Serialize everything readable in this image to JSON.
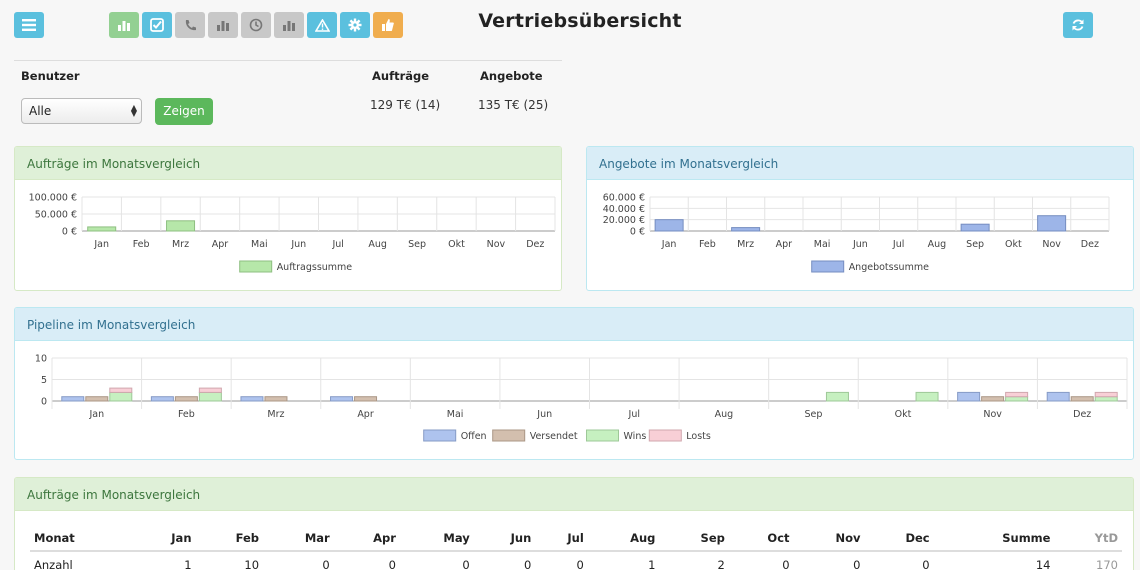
{
  "page_title": "Vertriebsübersicht",
  "toolbar": {
    "buttons": [
      {
        "name": "menu-button",
        "icon": "menu-list-icon",
        "color": "#5bc0de"
      },
      {
        "name": "bar-chart-button",
        "icon": "bar-chart-icon",
        "color": "#93d092"
      },
      {
        "name": "check-button",
        "icon": "checkbox-icon",
        "color": "#5bc0de"
      },
      {
        "name": "phone-button",
        "icon": "phone-icon",
        "color": "#c8c8c8"
      },
      {
        "name": "stats-button",
        "icon": "bar-chart-icon",
        "color": "#c8c8c8"
      },
      {
        "name": "clock-button",
        "icon": "clock-icon",
        "color": "#c8c8c8"
      },
      {
        "name": "stats2-button",
        "icon": "bar-chart-icon",
        "color": "#c8c8c8"
      },
      {
        "name": "warning-button",
        "icon": "warning-icon",
        "color": "#5bc0de"
      },
      {
        "name": "settings-button",
        "icon": "gear-icon",
        "color": "#5bc0de"
      },
      {
        "name": "thumbs-up-button",
        "icon": "thumbs-up-icon",
        "color": "#f0ad4e"
      },
      {
        "name": "refresh-button",
        "icon": "refresh-icon",
        "color": "#5bc0de"
      }
    ]
  },
  "filter": {
    "user_label": "Benutzer",
    "orders_label": "Aufträge",
    "offers_label": "Angebote",
    "user_select_value": "Alle",
    "show_button": "Zeigen",
    "orders_value": "129 T€ (14)",
    "offers_value": "135 T€ (25)"
  },
  "panels": {
    "orders_title": "Aufträge im Monatsvergleich",
    "offers_title": "Angebote im Monatsvergleich",
    "pipeline_title": "Pipeline im Monatsvergleich",
    "table_title": "Aufträge im Monatsvergleich"
  },
  "chart_data": [
    {
      "type": "bar",
      "categories": [
        "Jan",
        "Feb",
        "Mrz",
        "Apr",
        "Mai",
        "Jun",
        "Jul",
        "Aug",
        "Sep",
        "Okt",
        "Nov",
        "Dez"
      ],
      "series": [
        {
          "name": "Auftragssumme",
          "color": "#b6e7a9",
          "values": [
            12000,
            0,
            30000,
            0,
            0,
            0,
            0,
            0,
            0,
            0,
            0,
            0
          ]
        }
      ],
      "yticks": [
        "100.000 €",
        "50.000 €",
        "0 €"
      ],
      "ylim": [
        0,
        100000
      ],
      "grid": true,
      "legend": "bottom"
    },
    {
      "type": "bar",
      "categories": [
        "Jan",
        "Feb",
        "Mrz",
        "Apr",
        "Mai",
        "Jun",
        "Jul",
        "Aug",
        "Sep",
        "Okt",
        "Nov",
        "Dez"
      ],
      "series": [
        {
          "name": "Angebotssumme",
          "color": "#9db5e8",
          "values": [
            20000,
            0,
            6000,
            0,
            0,
            0,
            0,
            0,
            12000,
            0,
            27000,
            0
          ]
        }
      ],
      "yticks": [
        "60.000 €",
        "40.000 €",
        "20.000 €",
        "0 €"
      ],
      "ylim": [
        0,
        60000
      ],
      "grid": true,
      "legend": "bottom"
    },
    {
      "type": "bar",
      "categories": [
        "Jan",
        "Feb",
        "Mrz",
        "Apr",
        "Mai",
        "Jun",
        "Jul",
        "Aug",
        "Sep",
        "Okt",
        "Nov",
        "Dez"
      ],
      "series": [
        {
          "name": "Offen",
          "color": "#aec3ee",
          "values": [
            1,
            1,
            1,
            1,
            0,
            0,
            0,
            0,
            0,
            0,
            2,
            2
          ]
        },
        {
          "name": "Versendet",
          "color": "#d3bfae",
          "values": [
            1,
            1,
            1,
            1,
            0,
            0,
            0,
            0,
            0,
            0,
            1,
            1
          ]
        },
        {
          "name": "Wins",
          "color": "#c6f0c0",
          "values": [
            2,
            2,
            0,
            0,
            0,
            0,
            0,
            0,
            2,
            2,
            1,
            1
          ]
        },
        {
          "name": "Losts",
          "color": "#f8cfd6",
          "values": [
            1,
            1,
            0,
            0,
            0,
            0,
            0,
            0,
            0,
            0,
            1,
            1
          ]
        }
      ],
      "stacked_series": [
        "Wins",
        "Losts"
      ],
      "yticks": [
        "10",
        "5",
        "0"
      ],
      "ylim": [
        0,
        10
      ],
      "grid": true,
      "legend": "bottom"
    },
    {
      "type": "table",
      "columns": [
        "Monat",
        "Jan",
        "Feb",
        "Mar",
        "Apr",
        "May",
        "Jun",
        "Jul",
        "Aug",
        "Sep",
        "Oct",
        "Nov",
        "Dec",
        "Summe",
        "YtD"
      ],
      "rows": [
        [
          "Anzahl",
          "1",
          "10",
          "0",
          "0",
          "0",
          "0",
          "0",
          "1",
          "2",
          "0",
          "0",
          "0",
          "14",
          "170"
        ]
      ]
    }
  ]
}
